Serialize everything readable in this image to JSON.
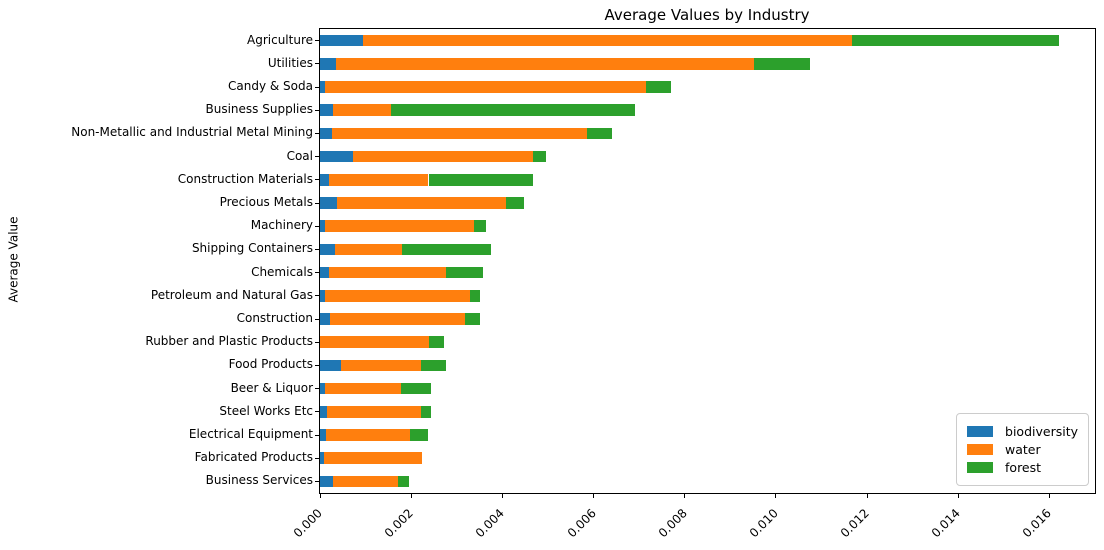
{
  "title": "Average Values by Industry",
  "ylabel": "Average Value",
  "chart_data": {
    "type": "bar",
    "orientation": "horizontal",
    "stacked": true,
    "title": "Average Values by Industry",
    "xlabel": "",
    "ylabel": "Average Value",
    "xlim": [
      0,
      0.017
    ],
    "xtick_labels": [
      "0.000",
      "0.002",
      "0.004",
      "0.006",
      "0.008",
      "0.010",
      "0.012",
      "0.014",
      "0.016"
    ],
    "xtick_values": [
      0.0,
      0.002,
      0.004,
      0.006,
      0.008,
      0.01,
      0.012,
      0.014,
      0.016
    ],
    "xtick_rotation": 45,
    "grid": false,
    "legend_position": "lower right",
    "categories": [
      "Agriculture",
      "Utilities",
      "Candy & Soda",
      "Business Supplies",
      "Non-Metallic and Industrial Metal Mining",
      "Coal",
      "Construction Materials",
      "Precious Metals",
      "Machinery",
      "Shipping Containers",
      "Chemicals",
      "Petroleum and Natural Gas",
      "Construction",
      "Rubber and Plastic Products",
      "Food Products",
      "Beer & Liquor",
      "Steel Works Etc",
      "Electrical Equipment",
      "Fabricated Products",
      "Business Services"
    ],
    "series": [
      {
        "name": "biodiversity",
        "color": "#1f77b4",
        "values": [
          0.00094,
          0.00035,
          0.0001,
          0.00028,
          0.00027,
          0.00072,
          0.00019,
          0.00037,
          0.0001,
          0.00033,
          0.0002,
          0.0001,
          0.00023,
          0.0,
          0.00045,
          0.0001,
          0.00016,
          0.00013,
          8e-05,
          0.00028
        ]
      },
      {
        "name": "water",
        "color": "#ff7f0e",
        "values": [
          0.01073,
          0.00918,
          0.00706,
          0.00127,
          0.00559,
          0.00395,
          0.00219,
          0.00372,
          0.00328,
          0.00146,
          0.00257,
          0.00318,
          0.00294,
          0.00239,
          0.00176,
          0.00168,
          0.00205,
          0.00184,
          0.00215,
          0.00144
        ]
      },
      {
        "name": "forest",
        "color": "#2ca02c",
        "values": [
          0.00454,
          0.00121,
          0.00054,
          0.00535,
          0.00055,
          0.00028,
          0.0023,
          0.00038,
          0.00026,
          0.00196,
          0.00081,
          0.00024,
          0.00035,
          0.00033,
          0.00055,
          0.00066,
          0.00023,
          0.00041,
          0.0,
          0.00023
        ]
      }
    ],
    "totals": [
      0.01621,
      0.01074,
      0.0077,
      0.0069,
      0.00641,
      0.00495,
      0.00468,
      0.00447,
      0.00364,
      0.00375,
      0.00358,
      0.00352,
      0.00352,
      0.00272,
      0.00276,
      0.00244,
      0.00244,
      0.00238,
      0.00223,
      0.00195
    ]
  }
}
